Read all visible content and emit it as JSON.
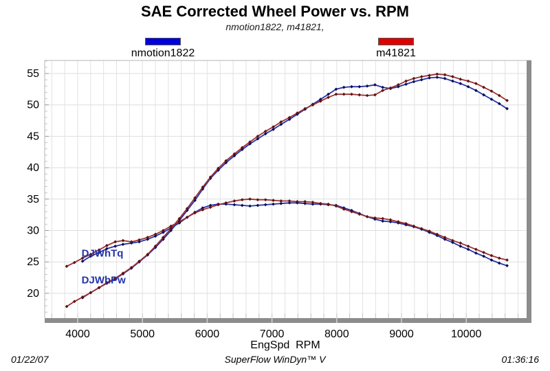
{
  "title": "SAE Corrected Wheel Power vs. RPM",
  "subtitle": "nmotion1822, m41821,",
  "legend": [
    {
      "label": "nmotion1822",
      "color": "#0000dd"
    },
    {
      "label": "m41821",
      "color": "#dd0000"
    }
  ],
  "footer": {
    "date": "01/22/07",
    "app": "SuperFlow WinDyn™ V",
    "time": "01:36:16"
  },
  "chart_data": {
    "type": "line",
    "title": "SAE Corrected Wheel Power vs. RPM",
    "xlabel": "EngSpd  RPM",
    "ylabel": "",
    "xlim": [
      3490,
      10930
    ],
    "ylim": [
      16,
      57.2
    ],
    "x_ticks": [
      4000,
      5000,
      6000,
      7000,
      8000,
      9000,
      10000
    ],
    "y_ticks": [
      20,
      25,
      30,
      35,
      40,
      45,
      50,
      55
    ],
    "grid": true,
    "legend_position": "top",
    "curve_labels": [
      {
        "text": "DJWhTq",
        "rpm": 4060,
        "value": 26.4
      },
      {
        "text": "DJWhPw",
        "rpm": 4060,
        "value": 22.1
      }
    ],
    "series": [
      {
        "name": "nmotion1822 DJWhPw",
        "line_color": "#2233aa",
        "marker_color": "#0d0d52",
        "points": [
          [
            4075,
            19.3
          ],
          [
            4200,
            20.1
          ],
          [
            4330,
            20.9
          ],
          [
            4450,
            21.6
          ],
          [
            4580,
            22.3
          ],
          [
            4700,
            23.1
          ],
          [
            4830,
            24.0
          ],
          [
            4950,
            25.0
          ],
          [
            5080,
            26.1
          ],
          [
            5200,
            27.3
          ],
          [
            5320,
            28.6
          ],
          [
            5440,
            30.0
          ],
          [
            5570,
            31.6
          ],
          [
            5690,
            33.2
          ],
          [
            5810,
            34.8
          ],
          [
            5930,
            36.6
          ],
          [
            6050,
            38.3
          ],
          [
            6170,
            39.6
          ],
          [
            6290,
            40.8
          ],
          [
            6420,
            41.9
          ],
          [
            6540,
            42.9
          ],
          [
            6660,
            43.8
          ],
          [
            6780,
            44.6
          ],
          [
            6900,
            45.4
          ],
          [
            7020,
            46.1
          ],
          [
            7140,
            46.9
          ],
          [
            7270,
            47.7
          ],
          [
            7390,
            48.5
          ],
          [
            7510,
            49.3
          ],
          [
            7630,
            50.1
          ],
          [
            7750,
            50.9
          ],
          [
            7870,
            51.7
          ],
          [
            7990,
            52.5
          ],
          [
            8110,
            52.8
          ],
          [
            8230,
            52.9
          ],
          [
            8350,
            52.9
          ],
          [
            8470,
            53.0
          ],
          [
            8590,
            53.2
          ],
          [
            8710,
            52.8
          ],
          [
            8830,
            52.6
          ],
          [
            8950,
            52.9
          ],
          [
            9070,
            53.3
          ],
          [
            9190,
            53.7
          ],
          [
            9310,
            54.0
          ],
          [
            9430,
            54.3
          ],
          [
            9550,
            54.4
          ],
          [
            9670,
            54.2
          ],
          [
            9790,
            53.8
          ],
          [
            9910,
            53.4
          ],
          [
            10030,
            52.9
          ],
          [
            10150,
            52.3
          ],
          [
            10270,
            51.6
          ],
          [
            10390,
            50.9
          ],
          [
            10510,
            50.2
          ],
          [
            10630,
            49.4
          ]
        ]
      },
      {
        "name": "nmotion1822 DJWhTq",
        "line_color": "#2233aa",
        "marker_color": "#0d0d52",
        "points": [
          [
            4075,
            25.1
          ],
          [
            4200,
            25.9
          ],
          [
            4330,
            26.5
          ],
          [
            4450,
            27.1
          ],
          [
            4580,
            27.5
          ],
          [
            4700,
            27.8
          ],
          [
            4830,
            28.0
          ],
          [
            4950,
            28.2
          ],
          [
            5080,
            28.6
          ],
          [
            5200,
            29.1
          ],
          [
            5320,
            29.7
          ],
          [
            5440,
            30.4
          ],
          [
            5570,
            31.2
          ],
          [
            5690,
            32.1
          ],
          [
            5810,
            32.9
          ],
          [
            5930,
            33.6
          ],
          [
            6050,
            34.0
          ],
          [
            6170,
            34.2
          ],
          [
            6290,
            34.2
          ],
          [
            6420,
            34.1
          ],
          [
            6540,
            34.0
          ],
          [
            6660,
            33.9
          ],
          [
            6780,
            34.0
          ],
          [
            6900,
            34.1
          ],
          [
            7020,
            34.2
          ],
          [
            7140,
            34.3
          ],
          [
            7270,
            34.4
          ],
          [
            7390,
            34.4
          ],
          [
            7510,
            34.3
          ],
          [
            7630,
            34.2
          ],
          [
            7750,
            34.2
          ],
          [
            7870,
            34.1
          ],
          [
            7990,
            34.0
          ],
          [
            8110,
            33.6
          ],
          [
            8230,
            33.2
          ],
          [
            8350,
            32.7
          ],
          [
            8470,
            32.2
          ],
          [
            8590,
            31.8
          ],
          [
            8710,
            31.5
          ],
          [
            8830,
            31.4
          ],
          [
            8950,
            31.2
          ],
          [
            9070,
            30.9
          ],
          [
            9190,
            30.6
          ],
          [
            9310,
            30.2
          ],
          [
            9430,
            29.7
          ],
          [
            9550,
            29.2
          ],
          [
            9670,
            28.6
          ],
          [
            9790,
            28.1
          ],
          [
            9910,
            27.5
          ],
          [
            10030,
            27.0
          ],
          [
            10150,
            26.4
          ],
          [
            10270,
            25.9
          ],
          [
            10390,
            25.3
          ],
          [
            10510,
            24.8
          ],
          [
            10630,
            24.4
          ]
        ]
      },
      {
        "name": "m41821 DJWhPw",
        "line_color": "#9e3030",
        "marker_color": "#581414",
        "points": [
          [
            3830,
            17.9
          ],
          [
            3950,
            18.7
          ],
          [
            4075,
            19.4
          ],
          [
            4200,
            20.1
          ],
          [
            4330,
            20.9
          ],
          [
            4450,
            21.7
          ],
          [
            4580,
            22.4
          ],
          [
            4700,
            23.2
          ],
          [
            4830,
            24.1
          ],
          [
            4950,
            25.1
          ],
          [
            5080,
            26.2
          ],
          [
            5200,
            27.5
          ],
          [
            5320,
            28.9
          ],
          [
            5440,
            30.3
          ],
          [
            5570,
            31.9
          ],
          [
            5690,
            33.5
          ],
          [
            5810,
            35.2
          ],
          [
            5930,
            36.9
          ],
          [
            6050,
            38.5
          ],
          [
            6170,
            39.9
          ],
          [
            6290,
            41.1
          ],
          [
            6420,
            42.2
          ],
          [
            6540,
            43.2
          ],
          [
            6660,
            44.1
          ],
          [
            6780,
            45.0
          ],
          [
            6900,
            45.8
          ],
          [
            7020,
            46.5
          ],
          [
            7140,
            47.3
          ],
          [
            7270,
            48.0
          ],
          [
            7390,
            48.7
          ],
          [
            7510,
            49.4
          ],
          [
            7630,
            50.0
          ],
          [
            7750,
            50.6
          ],
          [
            7870,
            51.2
          ],
          [
            7990,
            51.7
          ],
          [
            8110,
            51.7
          ],
          [
            8230,
            51.7
          ],
          [
            8350,
            51.6
          ],
          [
            8470,
            51.5
          ],
          [
            8590,
            51.6
          ],
          [
            8710,
            52.3
          ],
          [
            8830,
            52.7
          ],
          [
            8950,
            53.2
          ],
          [
            9070,
            53.8
          ],
          [
            9190,
            54.2
          ],
          [
            9310,
            54.5
          ],
          [
            9430,
            54.7
          ],
          [
            9550,
            54.9
          ],
          [
            9670,
            54.8
          ],
          [
            9790,
            54.5
          ],
          [
            9910,
            54.1
          ],
          [
            10030,
            53.8
          ],
          [
            10150,
            53.4
          ],
          [
            10270,
            52.8
          ],
          [
            10390,
            52.2
          ],
          [
            10510,
            51.5
          ],
          [
            10630,
            50.7
          ]
        ]
      },
      {
        "name": "m41821 DJWhTq",
        "line_color": "#9e3030",
        "marker_color": "#581414",
        "points": [
          [
            3830,
            24.3
          ],
          [
            3950,
            24.9
          ],
          [
            4075,
            25.6
          ],
          [
            4200,
            26.2
          ],
          [
            4330,
            26.9
          ],
          [
            4450,
            27.6
          ],
          [
            4580,
            28.2
          ],
          [
            4700,
            28.4
          ],
          [
            4830,
            28.2
          ],
          [
            4950,
            28.5
          ],
          [
            5080,
            28.9
          ],
          [
            5200,
            29.4
          ],
          [
            5320,
            30.0
          ],
          [
            5440,
            30.7
          ],
          [
            5570,
            31.4
          ],
          [
            5690,
            32.1
          ],
          [
            5810,
            32.8
          ],
          [
            5930,
            33.3
          ],
          [
            6050,
            33.7
          ],
          [
            6170,
            34.1
          ],
          [
            6290,
            34.4
          ],
          [
            6420,
            34.7
          ],
          [
            6540,
            34.9
          ],
          [
            6660,
            35.0
          ],
          [
            6780,
            34.9
          ],
          [
            6900,
            34.9
          ],
          [
            7020,
            34.8
          ],
          [
            7140,
            34.7
          ],
          [
            7270,
            34.7
          ],
          [
            7390,
            34.6
          ],
          [
            7510,
            34.6
          ],
          [
            7630,
            34.5
          ],
          [
            7750,
            34.3
          ],
          [
            7870,
            34.2
          ],
          [
            7990,
            33.9
          ],
          [
            8110,
            33.4
          ],
          [
            8230,
            33.0
          ],
          [
            8350,
            32.6
          ],
          [
            8470,
            32.2
          ],
          [
            8590,
            32.0
          ],
          [
            8710,
            31.9
          ],
          [
            8830,
            31.7
          ],
          [
            8950,
            31.4
          ],
          [
            9070,
            31.1
          ],
          [
            9190,
            30.7
          ],
          [
            9310,
            30.3
          ],
          [
            9430,
            29.9
          ],
          [
            9550,
            29.4
          ],
          [
            9670,
            28.9
          ],
          [
            9790,
            28.4
          ],
          [
            9910,
            28.0
          ],
          [
            10030,
            27.5
          ],
          [
            10150,
            27.0
          ],
          [
            10270,
            26.5
          ],
          [
            10390,
            26.0
          ],
          [
            10510,
            25.6
          ],
          [
            10630,
            25.3
          ]
        ]
      }
    ]
  }
}
